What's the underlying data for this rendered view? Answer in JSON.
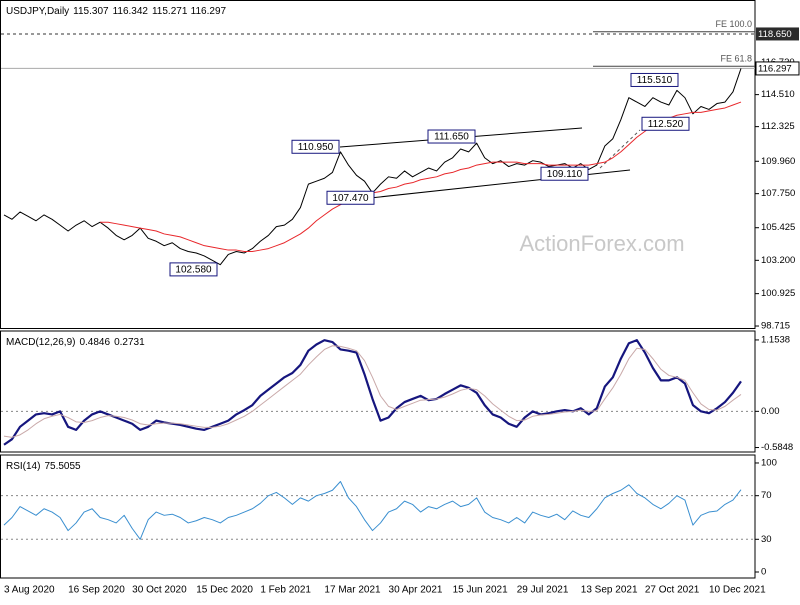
{
  "chart_data": [
    {
      "type": "line",
      "title": "USDJPY,Daily",
      "quote": {
        "open": 115.307,
        "high": 116.342,
        "low": 115.271,
        "close": 116.297
      },
      "categories": [
        "3 Aug 2020",
        null,
        null,
        null,
        null,
        null,
        null,
        null,
        "16 Sep 2020",
        null,
        null,
        null,
        null,
        null,
        null,
        null,
        "30 Oct 2020",
        null,
        null,
        null,
        null,
        null,
        null,
        null,
        "15 Dec 2020",
        null,
        null,
        null,
        null,
        null,
        null,
        null,
        "1 Feb 2021",
        null,
        null,
        null,
        null,
        null,
        null,
        null,
        "17 Mar 2021",
        null,
        null,
        null,
        null,
        null,
        null,
        null,
        "30 Apr 2021",
        null,
        null,
        null,
        null,
        null,
        null,
        null,
        "15 Jun 2021",
        null,
        null,
        null,
        null,
        null,
        null,
        null,
        "29 Jul 2021",
        null,
        null,
        null,
        null,
        null,
        null,
        null,
        "13 Sep 2021",
        null,
        null,
        null,
        null,
        null,
        null,
        null,
        "27 Oct 2021",
        null,
        null,
        null,
        null,
        null,
        null,
        null,
        "10 Dec 2021",
        null,
        null,
        null,
        null
      ],
      "series": [
        {
          "color": "#000000",
          "width": 1,
          "values": [
            106.3,
            106.0,
            106.5,
            106.2,
            105.9,
            106.3,
            106.0,
            105.6,
            105.2,
            105.6,
            105.9,
            105.5,
            105.8,
            105.4,
            104.9,
            104.6,
            104.9,
            105.4,
            104.7,
            104.5,
            104.2,
            104.4,
            104.0,
            103.8,
            103.7,
            103.5,
            103.2,
            102.9,
            103.6,
            103.8,
            103.7,
            104.0,
            104.5,
            104.9,
            105.5,
            105.6,
            106.0,
            106.8,
            108.4,
            108.6,
            108.8,
            109.2,
            110.6,
            109.7,
            109.0,
            108.6,
            107.8,
            108.4,
            108.9,
            108.8,
            109.3,
            108.9,
            109.2,
            109.5,
            109.3,
            109.9,
            110.2,
            110.8,
            110.6,
            111.2,
            110.2,
            109.8,
            110.0,
            109.6,
            109.8,
            109.7,
            110.0,
            109.9,
            109.6,
            109.7,
            109.8,
            109.5,
            109.8,
            109.4,
            109.7,
            111.0,
            111.5,
            112.8,
            114.3,
            114.0,
            113.7,
            114.3,
            114.0,
            113.8,
            114.8,
            114.3,
            113.2,
            113.7,
            113.5,
            113.9,
            114.0,
            114.7,
            116.297
          ]
        },
        {
          "color": "#e8272b",
          "width": 1,
          "values": [
            null,
            null,
            null,
            null,
            null,
            null,
            null,
            null,
            null,
            null,
            null,
            null,
            105.8,
            105.8,
            105.7,
            105.6,
            105.5,
            105.4,
            105.3,
            105.2,
            105.0,
            104.9,
            104.8,
            104.6,
            104.4,
            104.2,
            104.1,
            104.0,
            103.9,
            103.9,
            103.8,
            103.8,
            103.9,
            104.0,
            104.2,
            104.4,
            104.7,
            105.0,
            105.4,
            105.9,
            106.3,
            106.7,
            107.0,
            107.3,
            107.5,
            107.7,
            107.8,
            107.9,
            108.1,
            108.2,
            108.4,
            108.5,
            108.7,
            108.8,
            108.9,
            109.1,
            109.2,
            109.4,
            109.5,
            109.7,
            109.8,
            109.9,
            109.9,
            109.9,
            109.9,
            109.8,
            109.8,
            109.8,
            109.7,
            109.7,
            109.7,
            109.7,
            109.7,
            109.7,
            109.8,
            109.9,
            110.2,
            110.6,
            111.1,
            111.6,
            112.0,
            112.4,
            112.7,
            112.9,
            113.1,
            113.2,
            113.3,
            113.3,
            113.4,
            113.5,
            113.6,
            113.8,
            114.0
          ]
        }
      ],
      "ylim": [
        98.58,
        120.9
      ],
      "yticks": [
        {
          "value": 116.72,
          "label": "116.720"
        },
        {
          "value": 114.51,
          "label": "114.510"
        },
        112.325,
        {
          "value": 109.96,
          "label": "109.960"
        },
        {
          "value": 107.75,
          "label": "107.750"
        },
        105.425,
        {
          "value": 103.2,
          "label": "103.200"
        },
        100.925,
        98.715
      ],
      "levels": [
        {
          "value": 118.65,
          "label": "118.650"
        }
      ],
      "fibonacci": [
        {
          "text": "FE 100.0",
          "value": 118.8
        },
        {
          "text": "FE 61.8",
          "value": 116.45
        }
      ],
      "annotations": [
        {
          "text": "110.950",
          "value": 110.95
        },
        {
          "text": "111.650",
          "value": 111.65
        },
        {
          "text": "107.470",
          "value": 107.47
        },
        {
          "text": "102.580",
          "value": 102.58
        },
        {
          "text": "109.110",
          "value": 109.11
        },
        {
          "text": "115.510",
          "value": 115.51
        },
        {
          "text": "112.520",
          "value": 112.52
        }
      ],
      "watermark": "ActionForex.com"
    },
    {
      "type": "line",
      "title": "MACD(12,26,9)",
      "series": [
        {
          "color": "#16167e",
          "width": 2.2,
          "values": [
            -0.54,
            -0.45,
            -0.25,
            -0.15,
            -0.05,
            -0.03,
            -0.05,
            0.0,
            -0.25,
            -0.3,
            -0.15,
            -0.05,
            0.0,
            -0.05,
            -0.1,
            -0.15,
            -0.2,
            -0.3,
            -0.25,
            -0.15,
            -0.18,
            -0.2,
            -0.22,
            -0.25,
            -0.28,
            -0.3,
            -0.25,
            -0.2,
            -0.15,
            -0.05,
            0.02,
            0.1,
            0.25,
            0.35,
            0.45,
            0.55,
            0.62,
            0.75,
            0.98,
            1.08,
            1.15,
            1.12,
            1.0,
            0.98,
            0.95,
            0.6,
            0.2,
            -0.15,
            -0.1,
            0.05,
            0.15,
            0.2,
            0.25,
            0.18,
            0.2,
            0.28,
            0.35,
            0.42,
            0.38,
            0.3,
            0.1,
            -0.05,
            -0.1,
            -0.2,
            -0.25,
            -0.1,
            0.0,
            -0.05,
            -0.03,
            0.0,
            0.02,
            0.0,
            0.05,
            -0.05,
            0.05,
            0.4,
            0.55,
            0.85,
            1.1,
            1.15,
            0.95,
            0.7,
            0.5,
            0.5,
            0.55,
            0.45,
            0.1,
            0.0,
            -0.03,
            0.05,
            0.15,
            0.3,
            0.4846
          ]
        },
        {
          "color": "#c9a9a9",
          "width": 1,
          "values": [
            -0.4,
            -0.42,
            -0.38,
            -0.3,
            -0.2,
            -0.12,
            -0.08,
            -0.05,
            -0.1,
            -0.17,
            -0.18,
            -0.15,
            -0.1,
            -0.07,
            -0.08,
            -0.1,
            -0.14,
            -0.2,
            -0.22,
            -0.2,
            -0.19,
            -0.19,
            -0.2,
            -0.22,
            -0.24,
            -0.26,
            -0.26,
            -0.24,
            -0.2,
            -0.14,
            -0.08,
            0.0,
            0.1,
            0.2,
            0.3,
            0.4,
            0.5,
            0.6,
            0.75,
            0.88,
            1.0,
            1.06,
            1.05,
            1.02,
            0.98,
            0.82,
            0.55,
            0.25,
            0.08,
            0.03,
            0.08,
            0.13,
            0.18,
            0.19,
            0.2,
            0.23,
            0.28,
            0.34,
            0.37,
            0.35,
            0.25,
            0.12,
            0.02,
            -0.08,
            -0.15,
            -0.14,
            -0.08,
            -0.06,
            -0.05,
            -0.03,
            -0.01,
            0.0,
            0.02,
            0.0,
            0.01,
            0.2,
            0.38,
            0.6,
            0.85,
            1.02,
            1.0,
            0.85,
            0.68,
            0.58,
            0.55,
            0.5,
            0.3,
            0.12,
            0.03,
            0.02,
            0.08,
            0.18,
            0.2731
          ]
        }
      ],
      "ylim": [
        -0.657,
        1.282
      ],
      "yticks": [
        1.1538,
        {
          "value": 0,
          "label": "0.00"
        },
        -0.5848
      ],
      "grid_ticks": [
        1
      ]
    },
    {
      "type": "line",
      "title": "RSI(14)",
      "series": [
        {
          "color": "#3a8fd0",
          "width": 1,
          "values": [
            43,
            50,
            60,
            56,
            52,
            58,
            55,
            50,
            38,
            45,
            55,
            58,
            50,
            48,
            45,
            52,
            40,
            30,
            48,
            55,
            52,
            53,
            50,
            45,
            47,
            50,
            48,
            45,
            50,
            52,
            55,
            58,
            63,
            70,
            73,
            68,
            62,
            68,
            65,
            70,
            72,
            75,
            83,
            68,
            60,
            48,
            38,
            45,
            55,
            58,
            65,
            62,
            55,
            60,
            58,
            62,
            65,
            60,
            62,
            68,
            55,
            50,
            48,
            45,
            50,
            45,
            55,
            52,
            50,
            53,
            48,
            56,
            52,
            50,
            58,
            68,
            72,
            75,
            80,
            72,
            68,
            62,
            58,
            63,
            70,
            66,
            43,
            52,
            55,
            56,
            62,
            66,
            75.5055
          ]
        }
      ],
      "ylim": [
        -5.5,
        106.4
      ],
      "yticks": [
        100,
        70,
        30,
        0
      ],
      "grid_ticks": [
        1,
        2
      ]
    }
  ]
}
